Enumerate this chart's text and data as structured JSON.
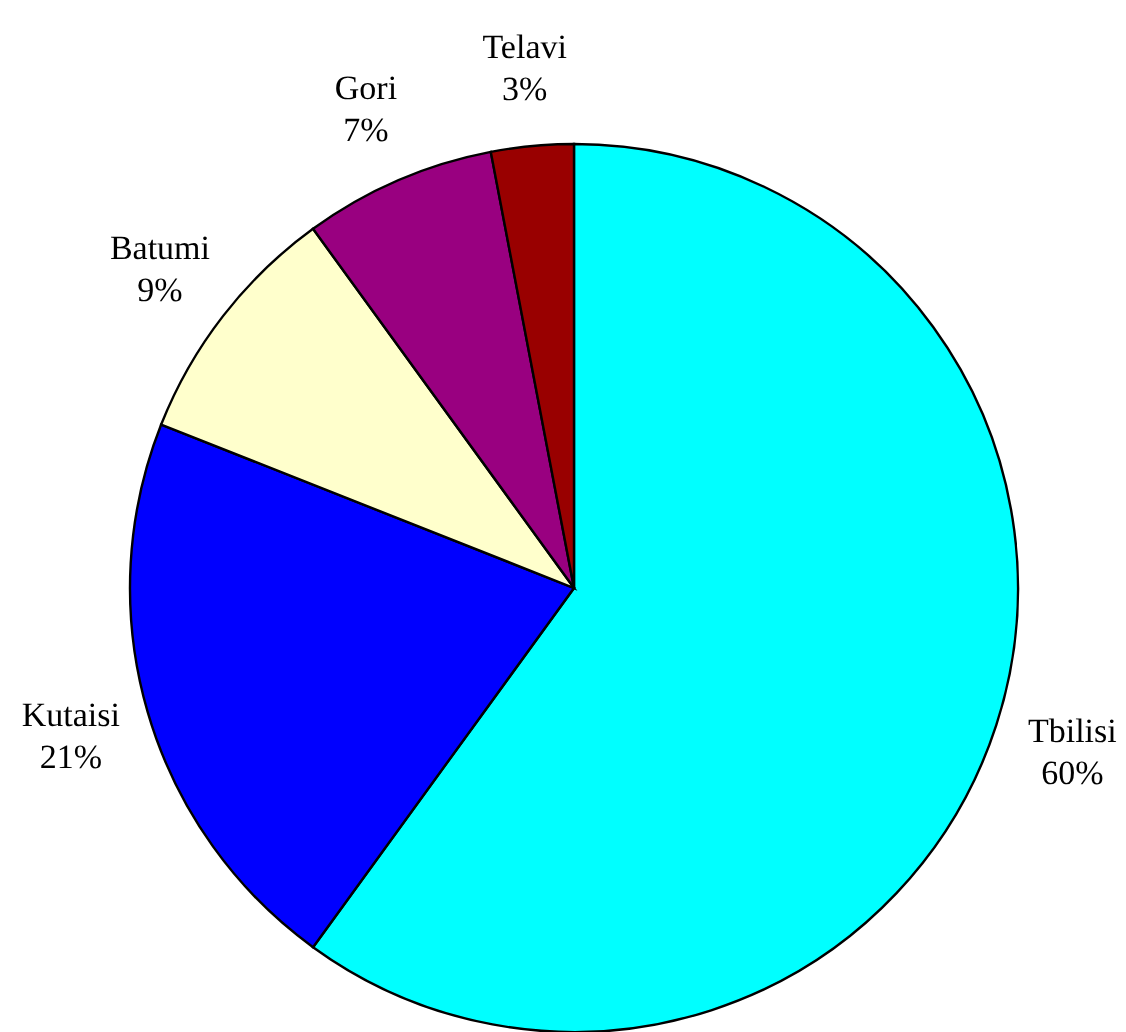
{
  "chart_data": {
    "type": "pie",
    "categories": [
      "Tbilisi",
      "Kutaisi",
      "Batumi",
      "Gori",
      "Telavi"
    ],
    "values": [
      60,
      21,
      9,
      7,
      3
    ],
    "value_labels": [
      "60%",
      "21%",
      "9%",
      "7%",
      "3%"
    ],
    "colors": [
      "#00ffff",
      "#0000ff",
      "#ffffcc",
      "#990080",
      "#990000"
    ]
  }
}
